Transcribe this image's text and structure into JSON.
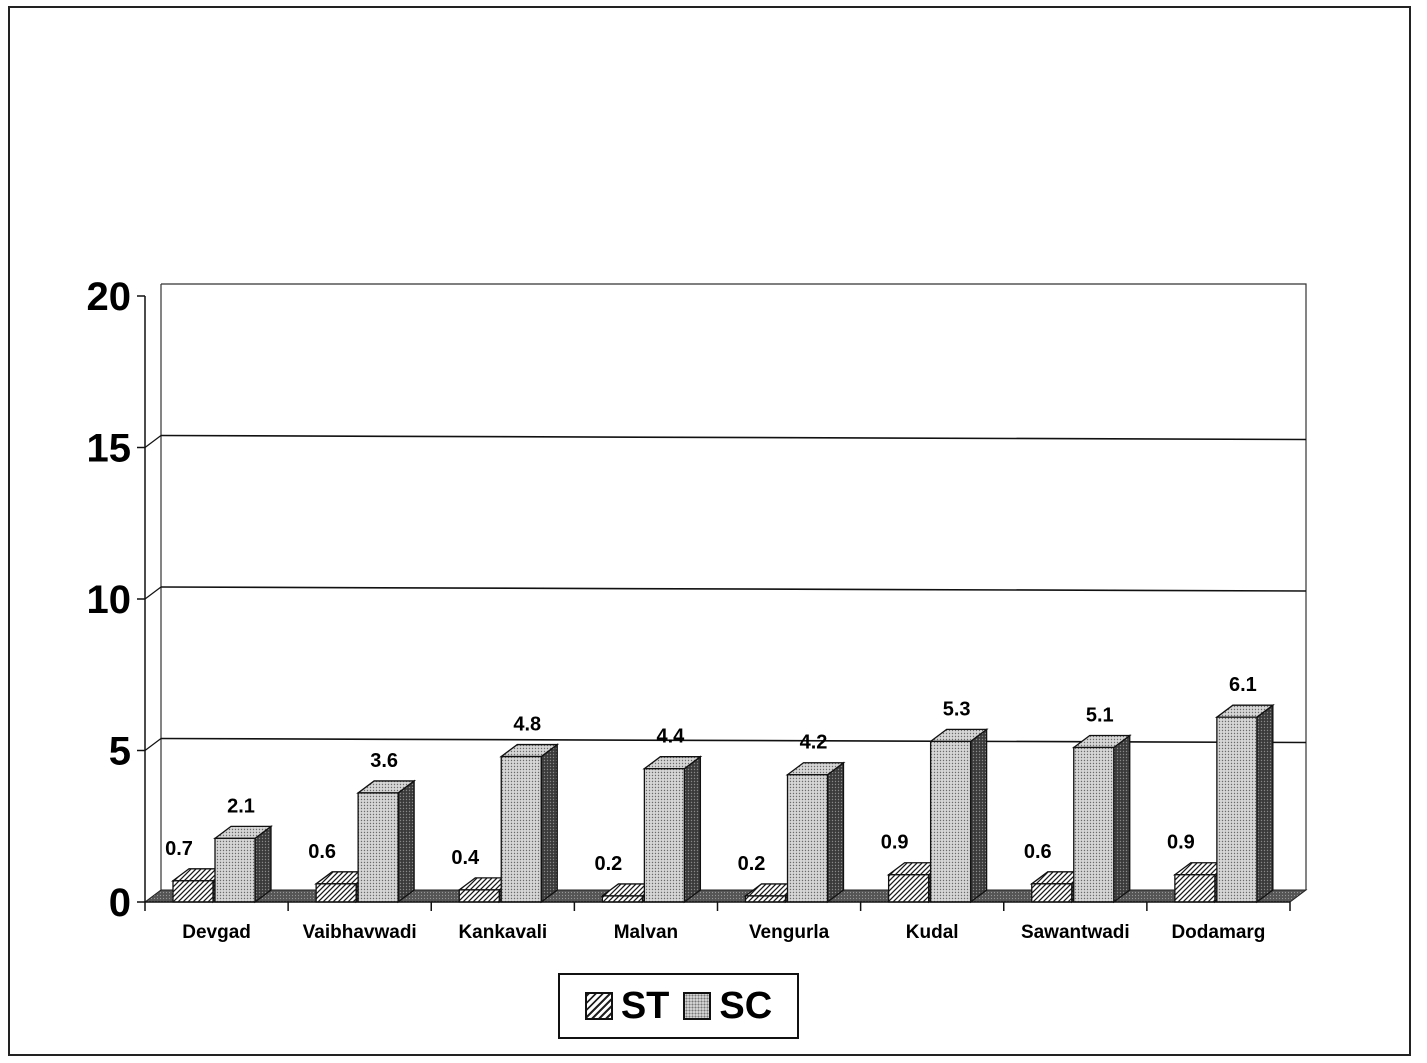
{
  "chart_data": {
    "type": "bar",
    "categories": [
      "Devgad",
      "Vaibhavwadi",
      "Kankavali",
      "Malvan",
      "Vengurla",
      "Kudal",
      "Sawantwadi",
      "Dodamarg"
    ],
    "series": [
      {
        "name": "ST",
        "values": [
          0.7,
          0.6,
          0.4,
          0.2,
          0.2,
          0.9,
          0.6,
          0.9
        ]
      },
      {
        "name": "SC",
        "values": [
          2.1,
          3.6,
          4.8,
          4.4,
          4.2,
          5.3,
          5.1,
          6.1
        ]
      }
    ],
    "ylim": [
      0,
      20
    ],
    "yticks": [
      0,
      5,
      10,
      15,
      20
    ],
    "grid": true,
    "style": "3d-clustered-column",
    "legend_position": "bottom-center"
  },
  "legend": {
    "st_label": "ST",
    "sc_label": "SC"
  }
}
